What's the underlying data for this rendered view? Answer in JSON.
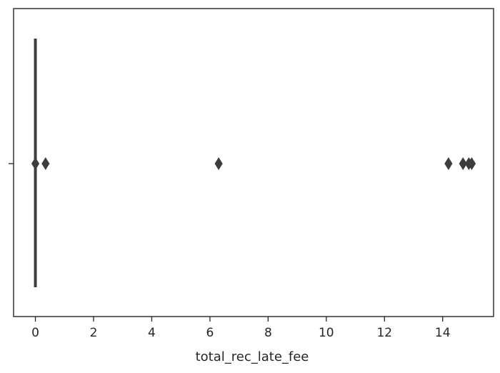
{
  "chart_data": {
    "type": "boxplot",
    "orientation": "horizontal",
    "xlabel": "total_rec_late_fee",
    "ylabel": "",
    "xlim": [
      -0.75,
      15.75
    ],
    "xticks": [
      0,
      2,
      4,
      6,
      8,
      10,
      12,
      14
    ],
    "xtick_labels": [
      "0",
      "2",
      "4",
      "6",
      "8",
      "10",
      "12",
      "14"
    ],
    "grid": false,
    "box": {
      "min": 0,
      "q1": 0,
      "median": 0,
      "q3": 0,
      "max": 0
    },
    "outliers": [
      0,
      0.35,
      6.3,
      14.2,
      14.7,
      14.9,
      15.0
    ],
    "colors": {
      "box_line": "#3d3d3d",
      "outlier_fill": "#3d3d3d",
      "axis": "#262626"
    }
  }
}
